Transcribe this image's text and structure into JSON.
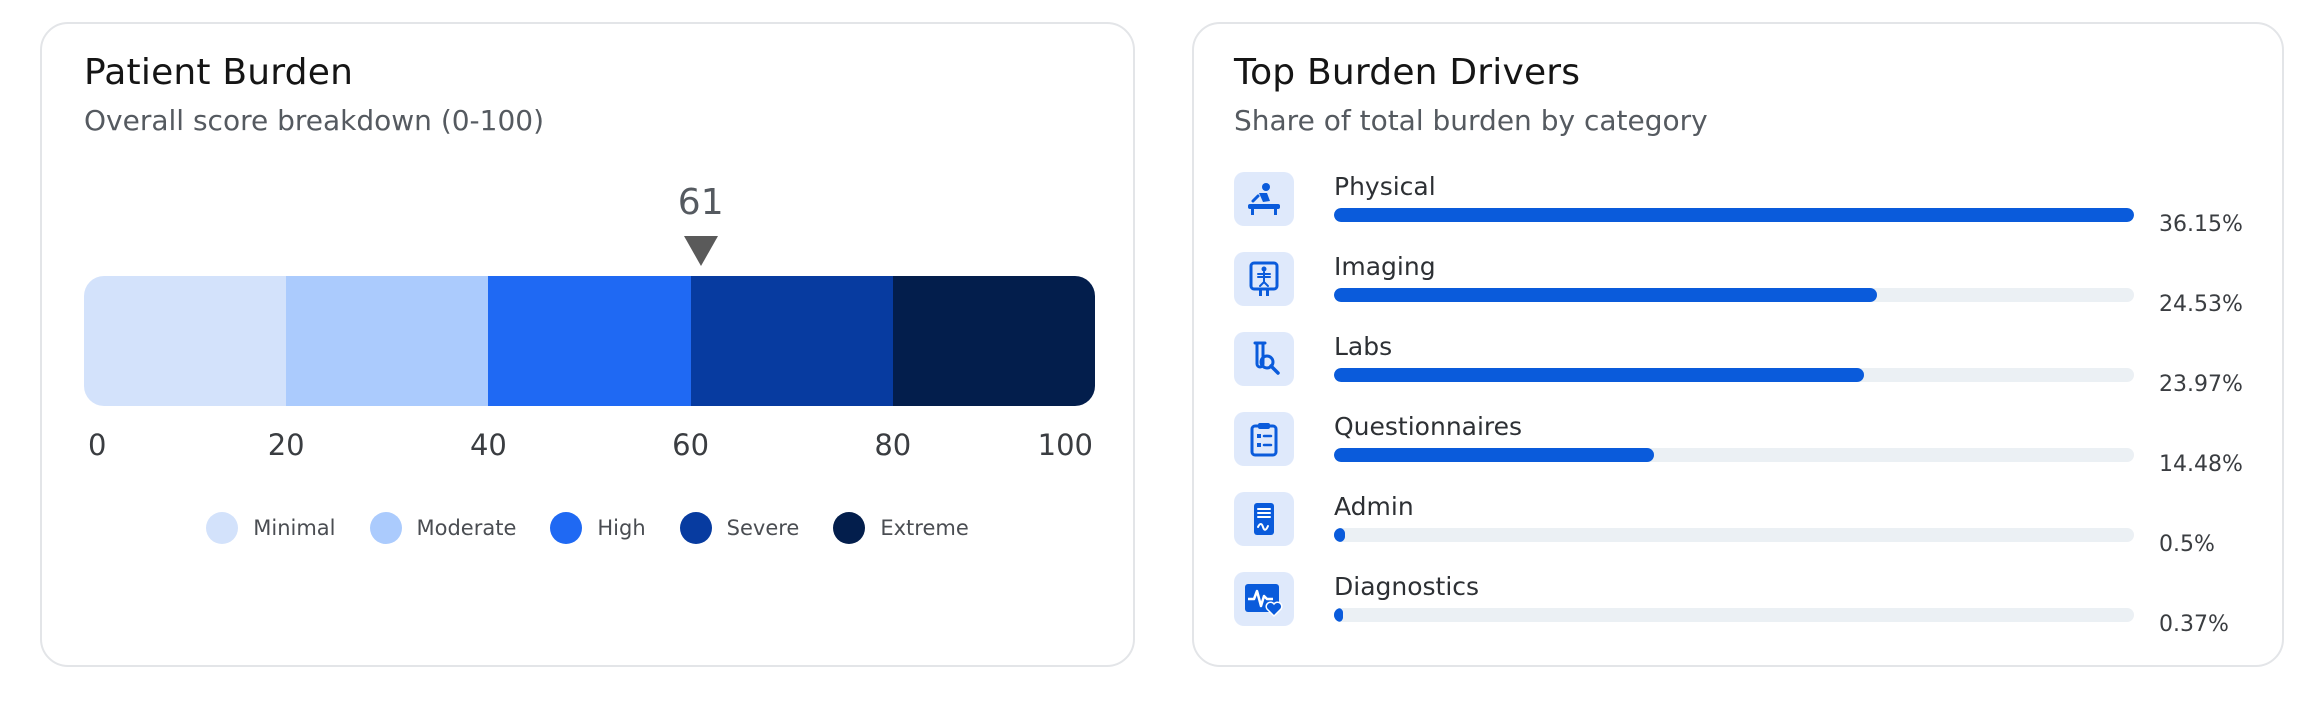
{
  "burden": {
    "title": "Patient Burden",
    "subtitle": "Overall score breakdown (0-100)",
    "score": 61,
    "score_label": "61",
    "ticks": [
      "0",
      "20",
      "40",
      "60",
      "80",
      "100"
    ],
    "tick_values": [
      0,
      20,
      40,
      60,
      80,
      100
    ],
    "levels": [
      {
        "label": "Minimal",
        "color": "#d3e2fb"
      },
      {
        "label": "Moderate",
        "color": "#abcbfd"
      },
      {
        "label": "High",
        "color": "#1f69f3"
      },
      {
        "label": "Severe",
        "color": "#073ba0"
      },
      {
        "label": "Extreme",
        "color": "#031e4c"
      }
    ]
  },
  "drivers": {
    "title": "Top Burden Drivers",
    "subtitle": "Share of total burden by category",
    "accent_color": "#0a5bdb",
    "items": [
      {
        "label": "Physical",
        "value": 36.15,
        "percent_label": "36.15%",
        "icon": "physical-therapy-icon"
      },
      {
        "label": "Imaging",
        "value": 24.53,
        "percent_label": "24.53%",
        "icon": "xray-icon"
      },
      {
        "label": "Labs",
        "value": 23.97,
        "percent_label": "23.97%",
        "icon": "test-tube-icon"
      },
      {
        "label": "Questionnaires",
        "value": 14.48,
        "percent_label": "14.48%",
        "icon": "clipboard-icon"
      },
      {
        "label": "Admin",
        "value": 0.5,
        "percent_label": "0.5%",
        "icon": "document-signature-icon"
      },
      {
        "label": "Diagnostics",
        "value": 0.37,
        "percent_label": "0.37%",
        "icon": "heart-monitor-icon"
      }
    ]
  }
}
